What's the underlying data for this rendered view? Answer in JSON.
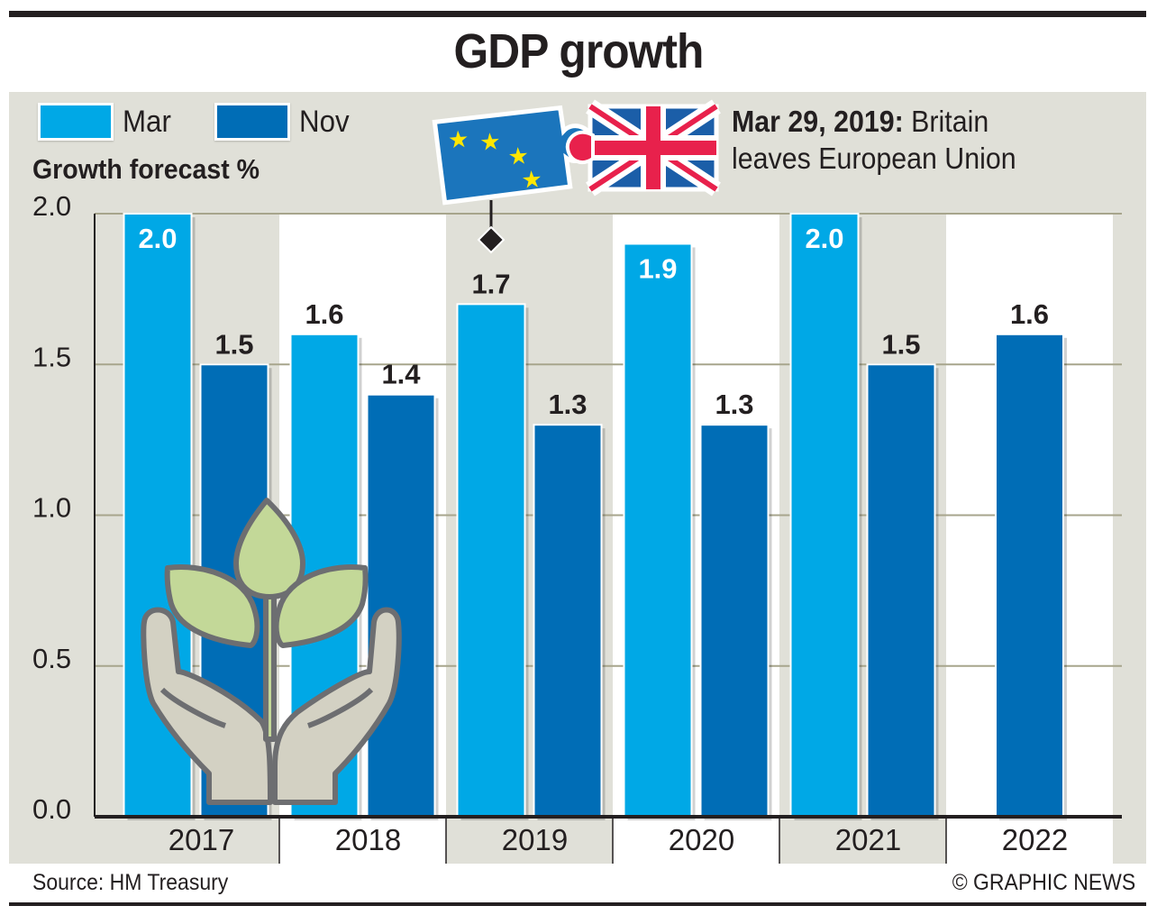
{
  "header": {
    "title": "GDP growth"
  },
  "legend": [
    {
      "label": "Mar",
      "color": "#00a8e6"
    },
    {
      "label": "Nov",
      "color": "#006db6"
    }
  ],
  "annotation": {
    "bold": "Mar 29, 2019:",
    "line1_rest": " Britain",
    "line2": "leaves European Union",
    "icon": "eu-uk-puzzle-icon",
    "marker_year": "2019"
  },
  "footer": {
    "source": "Source: HM Treasury",
    "credit": "© GRAPHIC NEWS"
  },
  "decoration": {
    "icon": "hands-holding-plant-icon"
  },
  "chart_data": {
    "type": "bar",
    "title": "GDP growth",
    "ylabel": "Growth forecast %",
    "xlabel": "",
    "categories": [
      "2017",
      "2018",
      "2019",
      "2020",
      "2021",
      "2022"
    ],
    "series": [
      {
        "name": "Mar",
        "color": "#00a8e6",
        "values": [
          2.0,
          1.6,
          1.7,
          1.9,
          2.0,
          null
        ]
      },
      {
        "name": "Nov",
        "color": "#006db6",
        "values": [
          1.5,
          1.4,
          1.3,
          1.3,
          1.5,
          1.6
        ]
      }
    ],
    "value_labels": {
      "Mar": [
        "2.0",
        "1.6",
        "1.7",
        "1.9",
        "2.0",
        null
      ],
      "Nov": [
        "1.5",
        "1.4",
        "1.3",
        "1.3",
        "1.5",
        "1.6"
      ]
    },
    "ylim": [
      0,
      2.0
    ],
    "yticks": [
      "0.0",
      "0.5",
      "1.0",
      "1.5",
      "2.0"
    ],
    "grid": true,
    "legend_position": "top-left",
    "annotations": [
      "Mar 29, 2019: Britain leaves European Union"
    ]
  }
}
